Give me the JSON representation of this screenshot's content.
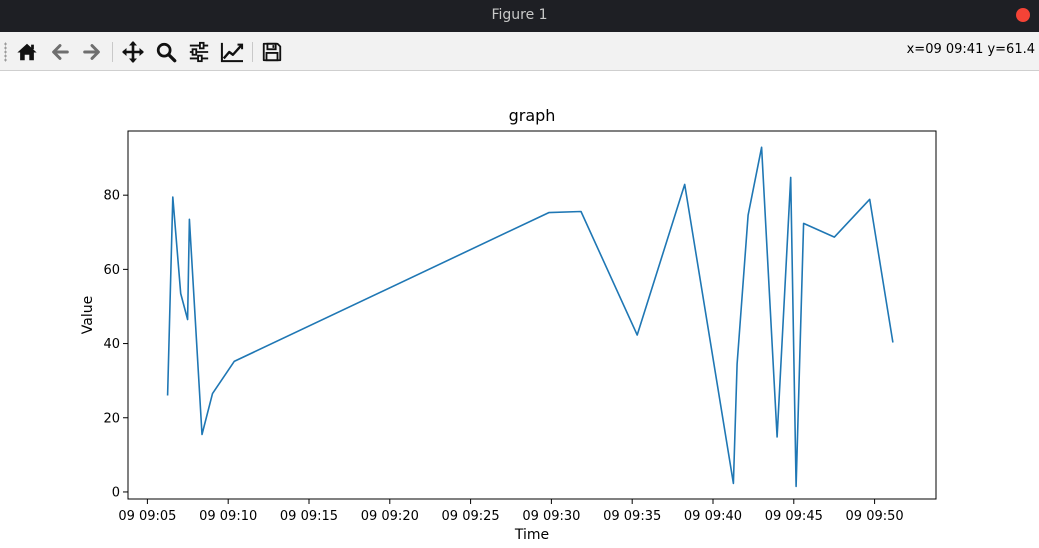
{
  "window": {
    "title": "Figure 1",
    "close_color": "#f44336"
  },
  "toolbar": {
    "buttons": [
      {
        "name": "home-button",
        "icon": "home-icon"
      },
      {
        "name": "back-button",
        "icon": "arrow-left-icon"
      },
      {
        "name": "forward-button",
        "icon": "arrow-right-icon"
      },
      {
        "name": "pan-button",
        "icon": "move-icon"
      },
      {
        "name": "zoom-button",
        "icon": "search-icon"
      },
      {
        "name": "subplots-button",
        "icon": "sliders-icon"
      },
      {
        "name": "edit-axes-button",
        "icon": "line-chart-icon"
      },
      {
        "name": "save-button",
        "icon": "floppy-disk-icon"
      }
    ],
    "coords": "x=09 09:41 y=61.4"
  },
  "chart_data": {
    "type": "line",
    "title": "graph",
    "xlabel": "Time",
    "ylabel": "Value",
    "x_unit": "minutes after 09 09:00",
    "xlim": [
      3.8,
      53.8
    ],
    "ylim": [
      -1.9,
      97.3
    ],
    "xticks": [
      {
        "value": 5,
        "label": "09 09:05"
      },
      {
        "value": 10,
        "label": "09 09:10"
      },
      {
        "value": 15,
        "label": "09 09:15"
      },
      {
        "value": 20,
        "label": "09 09:20"
      },
      {
        "value": 25,
        "label": "09 09:25"
      },
      {
        "value": 30,
        "label": "09 09:30"
      },
      {
        "value": 35,
        "label": "09 09:35"
      },
      {
        "value": 40,
        "label": "09 09:40"
      },
      {
        "value": 45,
        "label": "09 09:45"
      },
      {
        "value": 50,
        "label": "09 09:50"
      }
    ],
    "yticks": [
      0,
      20,
      40,
      60,
      80
    ],
    "grid": false,
    "color": "#1f77b4",
    "series": [
      {
        "x": [
          6.25,
          6.57,
          7.06,
          7.49,
          7.6,
          8.38,
          9.03,
          10.37,
          29.84,
          31.83,
          35.31,
          38.25,
          41.26,
          41.49,
          42.17,
          43.01,
          43.97,
          44.81,
          45.14,
          45.61,
          47.51,
          49.7,
          51.13
        ],
        "y": [
          26,
          79.5,
          53.5,
          46.5,
          73.5,
          15.5,
          26.5,
          35.2,
          75.3,
          75.6,
          42.3,
          82.9,
          2.3,
          34.5,
          74.6,
          92.9,
          14.8,
          84.8,
          1.5,
          72.4,
          68.7,
          78.9,
          40.3
        ]
      }
    ]
  }
}
